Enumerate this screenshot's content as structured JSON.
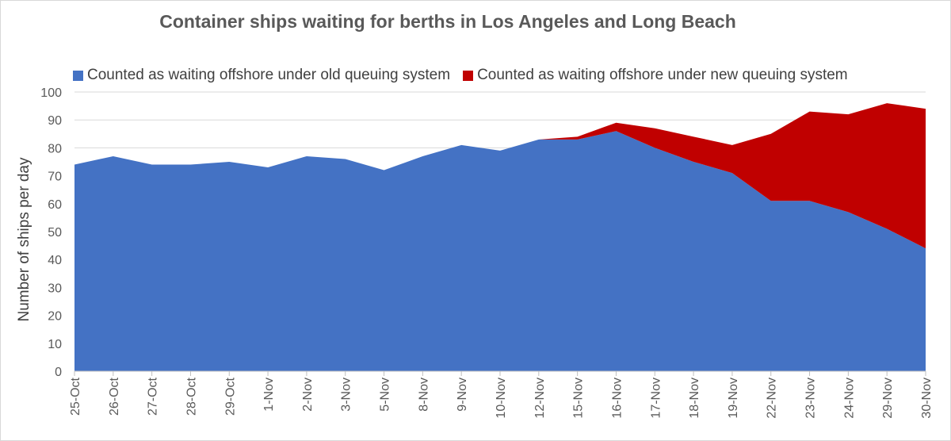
{
  "chart_data": {
    "type": "area",
    "stacked": true,
    "title": "Container ships waiting for berths in Los Angeles and Long Beach",
    "xlabel": "",
    "ylabel": "Number of ships per day",
    "ylim": [
      0,
      100
    ],
    "yticks": [
      0,
      10,
      20,
      30,
      40,
      50,
      60,
      70,
      80,
      90,
      100
    ],
    "grid": true,
    "legend_position": "top",
    "categories": [
      "25-Oct",
      "26-Oct",
      "27-Oct",
      "28-Oct",
      "29-Oct",
      "1-Nov",
      "2-Nov",
      "3-Nov",
      "5-Nov",
      "8-Nov",
      "9-Nov",
      "10-Nov",
      "12-Nov",
      "15-Nov",
      "16-Nov",
      "17-Nov",
      "18-Nov",
      "19-Nov",
      "22-Nov",
      "23-Nov",
      "24-Nov",
      "29-Nov",
      "30-Nov"
    ],
    "series": [
      {
        "name": "Counted as waiting offshore under old queuing system",
        "color": "#4472C4",
        "values": [
          74,
          77,
          74,
          74,
          75,
          73,
          77,
          76,
          72,
          77,
          81,
          79,
          83,
          83,
          86,
          80,
          75,
          71,
          61,
          61,
          57,
          51,
          44
        ]
      },
      {
        "name": "Counted as waiting offshore under new queuing system",
        "color": "#C00000",
        "values": [
          0,
          0,
          0,
          0,
          0,
          0,
          0,
          0,
          0,
          0,
          0,
          0,
          0,
          1,
          3,
          7,
          9,
          10,
          24,
          32,
          35,
          45,
          50
        ]
      }
    ]
  }
}
